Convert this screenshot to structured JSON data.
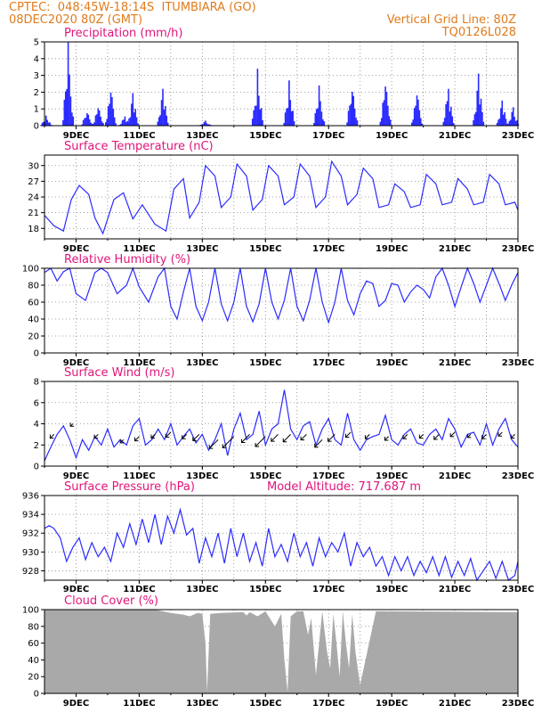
{
  "header": {
    "line1": "CPTEC:  048:45W-18:14S  ITUMBIARA (GO)",
    "line2": "08DEC2020 80Z (GMT)",
    "grid_note": "Vertical Grid Line: 80Z",
    "code": "TQ0126L028",
    "color": "#e07b1c"
  },
  "x_ticks": [
    "9DEC",
    "11DEC",
    "13DEC",
    "15DEC",
    "17DEC",
    "19DEC",
    "21DEC",
    "23DEC"
  ],
  "chart_data": [
    {
      "type": "bar",
      "title": "Precipitation  (mm/h)",
      "ylim": [
        0,
        5
      ],
      "yticks": [
        0,
        1,
        2,
        3,
        4,
        5
      ],
      "color": "#2b2bff",
      "bursts": [
        {
          "day": 8.05,
          "peak": 0.6
        },
        {
          "day": 8.75,
          "peak": 5.0
        },
        {
          "day": 9.35,
          "peak": 1.0
        },
        {
          "day": 9.7,
          "peak": 1.3
        },
        {
          "day": 10.1,
          "peak": 2.3
        },
        {
          "day": 10.55,
          "peak": 0.6
        },
        {
          "day": 10.8,
          "peak": 2.0
        },
        {
          "day": 11.75,
          "peak": 2.2
        },
        {
          "day": 13.1,
          "peak": 0.3
        },
        {
          "day": 14.75,
          "peak": 3.4
        },
        {
          "day": 15.75,
          "peak": 2.7
        },
        {
          "day": 16.7,
          "peak": 2.4
        },
        {
          "day": 17.75,
          "peak": 2.7
        },
        {
          "day": 18.8,
          "peak": 2.9
        },
        {
          "day": 19.8,
          "peak": 2.1
        },
        {
          "day": 20.8,
          "peak": 2.4
        },
        {
          "day": 21.75,
          "peak": 3.2
        },
        {
          "day": 22.5,
          "peak": 1.5
        },
        {
          "day": 22.85,
          "peak": 1.1
        }
      ]
    },
    {
      "type": "line",
      "title": "Surface Temperature (nC)",
      "ylim": [
        16,
        32
      ],
      "yticks": [
        18,
        21,
        24,
        27,
        30
      ],
      "color": "#2b2bff",
      "x": [
        8,
        8.3,
        8.6,
        8.85,
        9.1,
        9.4,
        9.6,
        9.85,
        10.2,
        10.5,
        10.8,
        11.1,
        11.5,
        11.85,
        12.1,
        12.4,
        12.6,
        12.9,
        13.1,
        13.4,
        13.6,
        13.9,
        14.1,
        14.4,
        14.6,
        14.9,
        15.1,
        15.4,
        15.6,
        15.9,
        16.1,
        16.4,
        16.6,
        16.9,
        17.1,
        17.4,
        17.6,
        17.9,
        18.1,
        18.4,
        18.6,
        18.9,
        19.1,
        19.4,
        19.6,
        19.9,
        20.1,
        20.4,
        20.6,
        20.9,
        21.1,
        21.4,
        21.6,
        21.9,
        22.1,
        22.4,
        22.6,
        22.9,
        23.0
      ],
      "y": [
        20.5,
        18.5,
        17.5,
        23.5,
        26.2,
        24.5,
        20.0,
        17.0,
        23.5,
        24.8,
        19.8,
        22.5,
        18.8,
        17.5,
        25.5,
        27.5,
        20.0,
        23.0,
        30.0,
        28.0,
        22.0,
        24.0,
        30.3,
        28.0,
        21.5,
        23.5,
        30.0,
        28.0,
        22.5,
        24.0,
        30.3,
        28.0,
        22.0,
        24.0,
        30.8,
        28.0,
        22.5,
        24.5,
        29.5,
        27.5,
        22.0,
        22.5,
        26.5,
        25.0,
        22.0,
        22.5,
        28.3,
        26.5,
        22.5,
        23.0,
        27.5,
        25.5,
        22.5,
        23.0,
        28.3,
        26.5,
        22.5,
        23.0,
        21.5
      ]
    },
    {
      "type": "line",
      "title": "Relative Humidity (%)",
      "ylim": [
        0,
        100
      ],
      "yticks": [
        0,
        20,
        40,
        60,
        80,
        100
      ],
      "color": "#2b2bff",
      "x": [
        8,
        8.2,
        8.4,
        8.6,
        8.8,
        9.0,
        9.3,
        9.6,
        9.8,
        10.0,
        10.3,
        10.6,
        10.8,
        11.0,
        11.3,
        11.6,
        11.8,
        12.0,
        12.2,
        12.4,
        12.6,
        12.8,
        13.0,
        13.2,
        13.4,
        13.6,
        13.8,
        14.0,
        14.2,
        14.4,
        14.6,
        14.8,
        15.0,
        15.2,
        15.4,
        15.6,
        15.8,
        16.0,
        16.2,
        16.4,
        16.6,
        16.8,
        17.0,
        17.2,
        17.4,
        17.6,
        17.8,
        18.0,
        18.2,
        18.4,
        18.6,
        18.8,
        19.0,
        19.2,
        19.4,
        19.6,
        19.8,
        20.0,
        20.2,
        20.4,
        20.6,
        20.8,
        21.0,
        21.2,
        21.4,
        21.6,
        21.8,
        22.0,
        22.2,
        22.4,
        22.6,
        22.8,
        23.0
      ],
      "y": [
        95,
        100,
        85,
        96,
        100,
        70,
        62,
        95,
        100,
        95,
        70,
        80,
        100,
        78,
        60,
        90,
        100,
        55,
        40,
        72,
        100,
        55,
        38,
        60,
        100,
        58,
        38,
        60,
        100,
        55,
        37,
        58,
        100,
        60,
        40,
        62,
        100,
        55,
        38,
        62,
        100,
        60,
        36,
        60,
        100,
        62,
        45,
        70,
        85,
        82,
        55,
        62,
        82,
        80,
        60,
        72,
        80,
        75,
        65,
        90,
        100,
        80,
        55,
        78,
        100,
        82,
        60,
        80,
        100,
        82,
        62,
        80,
        95
      ]
    },
    {
      "type": "line",
      "title": "Surface Wind (m/s)",
      "ylim": [
        0,
        8
      ],
      "yticks": [
        0,
        2,
        4,
        6,
        8
      ],
      "color": "#2b2bff",
      "x": [
        8,
        8.2,
        8.4,
        8.6,
        8.8,
        9.0,
        9.2,
        9.4,
        9.6,
        9.8,
        10.0,
        10.2,
        10.4,
        10.6,
        10.8,
        11.0,
        11.2,
        11.4,
        11.6,
        11.8,
        12.0,
        12.2,
        12.4,
        12.6,
        12.8,
        13.0,
        13.2,
        13.4,
        13.6,
        13.8,
        14.0,
        14.2,
        14.4,
        14.6,
        14.8,
        15.0,
        15.2,
        15.4,
        15.6,
        15.8,
        16.0,
        16.2,
        16.4,
        16.6,
        16.8,
        17.0,
        17.2,
        17.4,
        17.6,
        17.8,
        18.0,
        18.2,
        18.4,
        18.6,
        18.8,
        19.0,
        19.2,
        19.4,
        19.6,
        19.8,
        20.0,
        20.2,
        20.4,
        20.6,
        20.8,
        21.0,
        21.2,
        21.4,
        21.6,
        21.8,
        22.0,
        22.2,
        22.4,
        22.6,
        22.8,
        23.0
      ],
      "y": [
        0.5,
        1.8,
        3.0,
        3.8,
        2.5,
        0.8,
        2.5,
        1.5,
        2.8,
        2.0,
        3.5,
        1.8,
        2.5,
        2.0,
        3.8,
        4.5,
        2.0,
        2.5,
        3.5,
        2.5,
        4.0,
        2.0,
        2.8,
        3.5,
        2.2,
        3.0,
        1.5,
        2.5,
        4.0,
        1.0,
        3.5,
        5.0,
        2.5,
        3.0,
        5.2,
        2.0,
        3.5,
        4.0,
        7.2,
        3.5,
        2.5,
        3.8,
        4.2,
        2.0,
        3.5,
        4.5,
        2.5,
        2.0,
        5.0,
        2.5,
        1.5,
        2.5,
        2.8,
        3.0,
        4.8,
        2.5,
        2.0,
        3.0,
        3.5,
        2.2,
        2.0,
        3.0,
        3.5,
        2.5,
        4.5,
        3.5,
        1.8,
        3.0,
        3.2,
        2.0,
        4.0,
        2.0,
        3.5,
        4.5,
        2.5,
        1.8
      ]
    },
    {
      "type": "line",
      "title": "Surface Pressure (hPa)",
      "annotation": "Model Altitude: 717.687  m",
      "ylim": [
        927,
        936
      ],
      "yticks": [
        928,
        930,
        932,
        934,
        936
      ],
      "color": "#2b2bff",
      "x": [
        8,
        8.15,
        8.3,
        8.5,
        8.7,
        8.9,
        9.1,
        9.3,
        9.5,
        9.7,
        9.9,
        10.1,
        10.3,
        10.5,
        10.7,
        10.9,
        11.1,
        11.3,
        11.5,
        11.7,
        11.9,
        12.1,
        12.3,
        12.5,
        12.7,
        12.9,
        13.1,
        13.3,
        13.5,
        13.7,
        13.9,
        14.1,
        14.3,
        14.5,
        14.7,
        14.9,
        15.1,
        15.3,
        15.5,
        15.7,
        15.9,
        16.1,
        16.3,
        16.5,
        16.7,
        16.9,
        17.1,
        17.3,
        17.5,
        17.7,
        17.9,
        18.1,
        18.3,
        18.5,
        18.7,
        18.9,
        19.1,
        19.3,
        19.5,
        19.7,
        19.9,
        20.1,
        20.3,
        20.5,
        20.7,
        20.9,
        21.1,
        21.3,
        21.5,
        21.7,
        21.9,
        22.1,
        22.3,
        22.5,
        22.7,
        22.9,
        23.0
      ],
      "y": [
        932.5,
        932.8,
        932.5,
        931.5,
        929.0,
        930.5,
        931.5,
        929.2,
        931.0,
        929.5,
        930.5,
        929.0,
        932.0,
        930.5,
        933.0,
        930.8,
        933.5,
        931.0,
        934.0,
        930.8,
        933.8,
        932.0,
        934.5,
        931.8,
        932.5,
        928.8,
        931.5,
        929.5,
        932.0,
        928.8,
        932.5,
        929.5,
        932.0,
        929.0,
        931.0,
        928.5,
        932.5,
        929.5,
        930.8,
        929.0,
        932.0,
        929.5,
        931.0,
        928.5,
        931.5,
        929.5,
        931.0,
        930.0,
        932.0,
        928.5,
        931.0,
        929.5,
        930.5,
        928.5,
        929.5,
        927.5,
        929.5,
        928.0,
        929.5,
        927.5,
        929.0,
        927.8,
        929.5,
        927.5,
        929.5,
        927.3,
        929.0,
        927.5,
        929.3,
        927.0,
        928.0,
        929.0,
        927.2,
        929.0,
        927.0,
        927.5,
        929.0
      ]
    },
    {
      "type": "area",
      "title": "Cloud Cover (%)",
      "ylim": [
        0,
        100
      ],
      "yticks": [
        0,
        20,
        40,
        60,
        80,
        100
      ],
      "color": "#a9a9a9",
      "x": [
        8,
        11.5,
        12.0,
        12.4,
        12.6,
        12.85,
        13.0,
        13.1,
        13.15,
        13.25,
        13.6,
        14.3,
        14.4,
        14.5,
        14.75,
        15.0,
        15.3,
        15.5,
        15.6,
        15.7,
        15.8,
        16.0,
        16.2,
        16.35,
        16.45,
        16.6,
        16.8,
        16.95,
        17.05,
        17.15,
        17.25,
        17.35,
        17.45,
        17.55,
        17.65,
        17.75,
        17.85,
        18.0,
        18.5,
        23.0
      ],
      "y": [
        100,
        100,
        96,
        94,
        92,
        96,
        95,
        60,
        2,
        95,
        96,
        97,
        93,
        97,
        92,
        98,
        80,
        95,
        40,
        2,
        92,
        98,
        98,
        70,
        90,
        22,
        98,
        50,
        30,
        95,
        60,
        20,
        98,
        60,
        30,
        95,
        50,
        10,
        98,
        97
      ]
    }
  ]
}
